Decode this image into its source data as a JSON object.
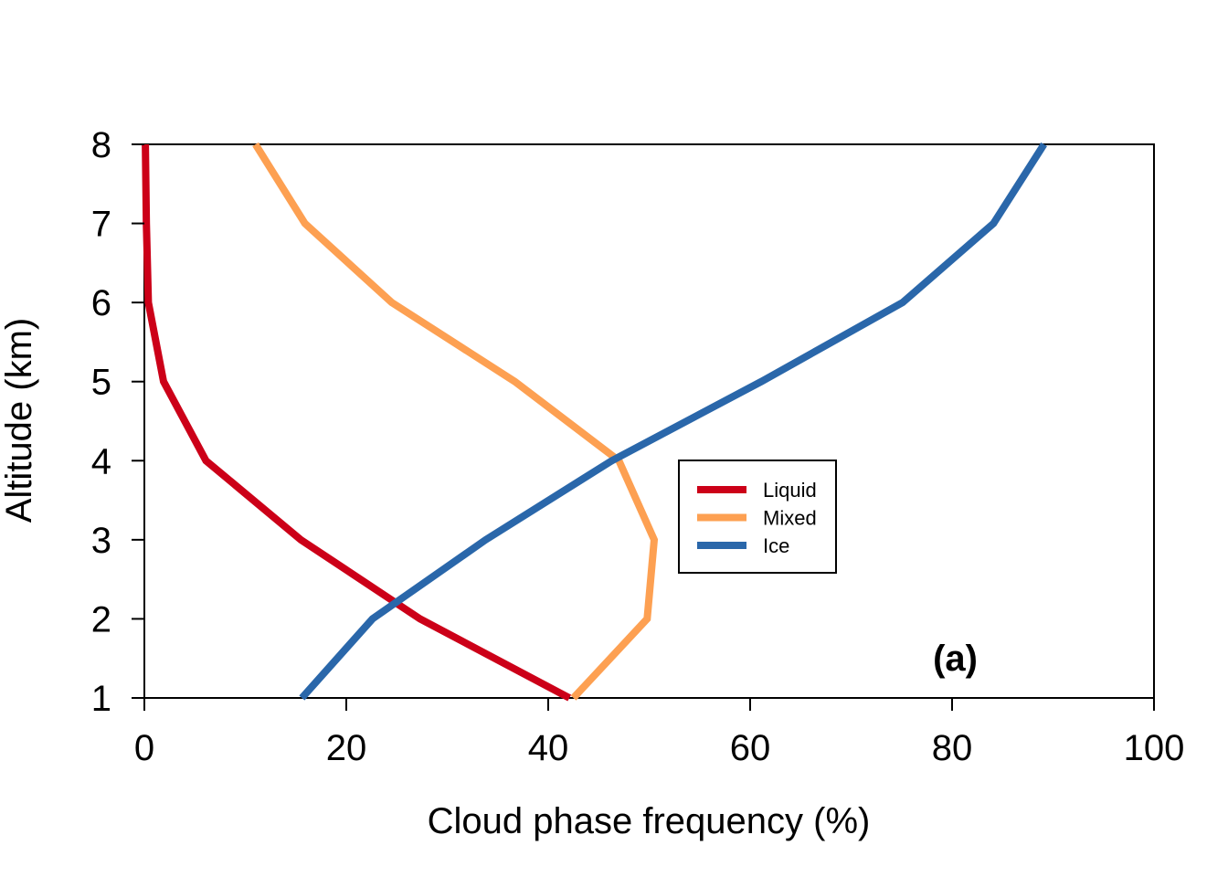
{
  "chart_data": {
    "type": "line",
    "xlabel": "Cloud phase frequency (%)",
    "ylabel": "Altitude (km)",
    "xlim": [
      0,
      100
    ],
    "ylim": [
      1,
      8
    ],
    "xticks": [
      0,
      20,
      40,
      60,
      80,
      100
    ],
    "yticks": [
      1,
      2,
      3,
      4,
      5,
      6,
      7,
      8
    ],
    "grid": false,
    "legend_position": "center-right",
    "annotation": "(a)",
    "series": [
      {
        "name": "Liquid",
        "color": "#cc0018",
        "points": [
          [
            42.1,
            1
          ],
          [
            27.3,
            2
          ],
          [
            15.5,
            3
          ],
          [
            6.1,
            4
          ],
          [
            1.9,
            5
          ],
          [
            0.4,
            6
          ],
          [
            0.2,
            7
          ],
          [
            0.1,
            8
          ]
        ]
      },
      {
        "name": "Mixed",
        "color": "#fda052",
        "points": [
          [
            42.5,
            1
          ],
          [
            49.8,
            2
          ],
          [
            50.5,
            3
          ],
          [
            47.0,
            4
          ],
          [
            36.7,
            5
          ],
          [
            24.5,
            6
          ],
          [
            15.9,
            7
          ],
          [
            11.0,
            8
          ]
        ]
      },
      {
        "name": "Ice",
        "color": "#2a67aa",
        "points": [
          [
            15.6,
            1
          ],
          [
            22.6,
            2
          ],
          [
            33.8,
            3
          ],
          [
            46.3,
            4
          ],
          [
            61.1,
            5
          ],
          [
            75.1,
            6
          ],
          [
            84.1,
            7
          ],
          [
            89.1,
            8
          ]
        ]
      }
    ]
  }
}
